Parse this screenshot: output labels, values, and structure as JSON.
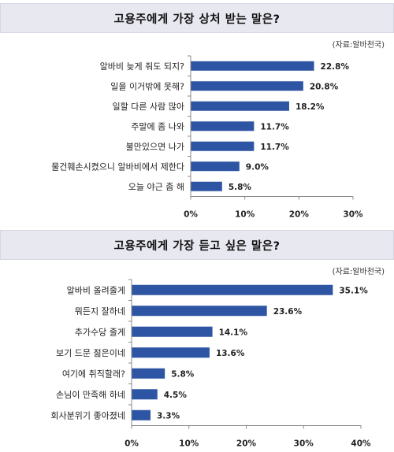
{
  "charts": [
    {
      "title": "고용주에게 가장 상처 받는 말은?",
      "source": "(자료:알바천국)"
    },
    {
      "title": "고용주에게 가장 듣고 싶은 말은?",
      "source": "(자료:알바천국)"
    }
  ],
  "chart_data": [
    {
      "type": "bar",
      "orientation": "horizontal",
      "title": "고용주에게 가장 상처 받는 말은?",
      "source": "(자료:알바천국)",
      "categories": [
        "알바비 늦게 줘도 되지?",
        "일을 이거밖에 못해?",
        "일할 다른 사람 많아",
        "주말에 좀 나와",
        "불만있으면 나가",
        "물건훼손시켰으니 알바비에서 제한다",
        "오늘 야근 좀 해"
      ],
      "values": [
        22.8,
        20.8,
        18.2,
        11.7,
        11.7,
        9.0,
        5.8
      ],
      "value_labels": [
        "22.8%",
        "20.8%",
        "18.2%",
        "11.7%",
        "11.7%",
        "9.0%",
        "5.8%"
      ],
      "xlim": [
        0,
        30
      ],
      "ticks": [
        0,
        10,
        20,
        30
      ],
      "tick_labels": [
        "0%",
        "10%",
        "20%",
        "30%"
      ],
      "bar_color": "#2e55a4",
      "grid": false
    },
    {
      "type": "bar",
      "orientation": "horizontal",
      "title": "고용주에게 가장 듣고 싶은 말은?",
      "source": "(자료:알바천국)",
      "categories": [
        "알바비 올려줄게",
        "뭐든지 잘하네",
        "추가수당 줄게",
        "보기 드문 젊은이네",
        "여기에 취직할래?",
        "손님이 만족해 하네",
        "회사분위기 좋아졌네"
      ],
      "values": [
        35.1,
        23.6,
        14.1,
        13.6,
        5.8,
        4.5,
        3.3
      ],
      "value_labels": [
        "35.1%",
        "23.6%",
        "14.1%",
        "13.6%",
        "5.8%",
        "4.5%",
        "3.3%"
      ],
      "xlim": [
        0,
        40
      ],
      "ticks": [
        0,
        10,
        20,
        30,
        40
      ],
      "tick_labels": [
        "0%",
        "10%",
        "20%",
        "30%",
        "40%"
      ],
      "bar_color": "#2e55a4",
      "grid": false
    }
  ]
}
